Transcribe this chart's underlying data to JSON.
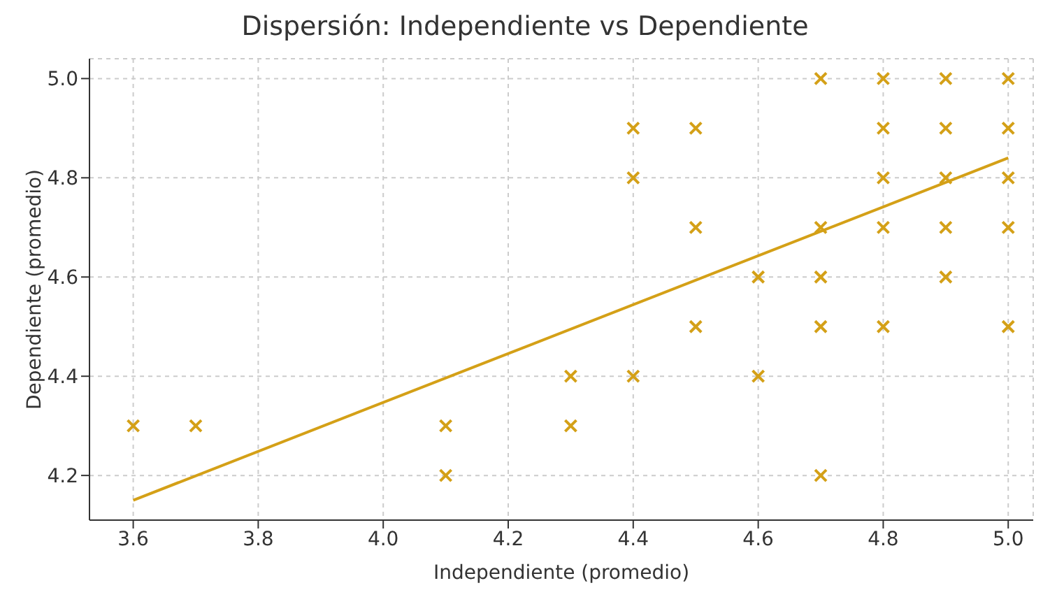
{
  "chart_data": {
    "type": "scatter",
    "title": "Dispersión: Independiente vs Dependiente",
    "xlabel": "Independiente (promedio)",
    "ylabel": "Dependiente (promedio)",
    "xlim": [
      3.53,
      5.04
    ],
    "xticks": [
      3.6,
      3.8,
      {
        "value": 4,
        "label": "4.0"
      },
      4.2,
      4.4,
      4.6,
      4.8,
      {
        "value": 5,
        "label": "5.0"
      }
    ],
    "ylim": [
      4.11,
      5.04
    ],
    "yticks": [
      4.2,
      4.4,
      4.6,
      4.8,
      {
        "value": 5,
        "label": "5.0"
      }
    ],
    "grid": true,
    "marker": "cross",
    "series": [
      {
        "color": "#d4a017",
        "x": [
          3.6,
          3.7,
          4.1,
          4.1,
          4.3,
          4.3,
          4.4,
          4.4,
          4.4,
          4.5,
          4.5,
          4.5,
          4.6,
          4.6,
          4.7,
          4.7,
          4.7,
          4.7,
          4.7,
          4.8,
          4.8,
          4.8,
          4.8,
          4.8,
          4.9,
          4.9,
          4.9,
          4.9,
          4.9,
          5.0,
          5.0,
          5.0,
          5.0,
          5.0
        ],
        "values": [
          4.3,
          4.3,
          4.3,
          4.2,
          4.4,
          4.3,
          4.9,
          4.8,
          4.4,
          4.9,
          4.7,
          4.5,
          4.6,
          4.4,
          5.0,
          4.7,
          4.6,
          4.5,
          4.2,
          5.0,
          4.9,
          4.8,
          4.7,
          4.5,
          5.0,
          4.9,
          4.8,
          4.7,
          4.6,
          5.0,
          4.9,
          4.8,
          4.7,
          4.5
        ]
      },
      {
        "type": "line",
        "marker": "none",
        "color": "#d4a017",
        "x": [
          3.6,
          5.0
        ],
        "values": [
          4.15,
          4.84
        ]
      }
    ]
  }
}
